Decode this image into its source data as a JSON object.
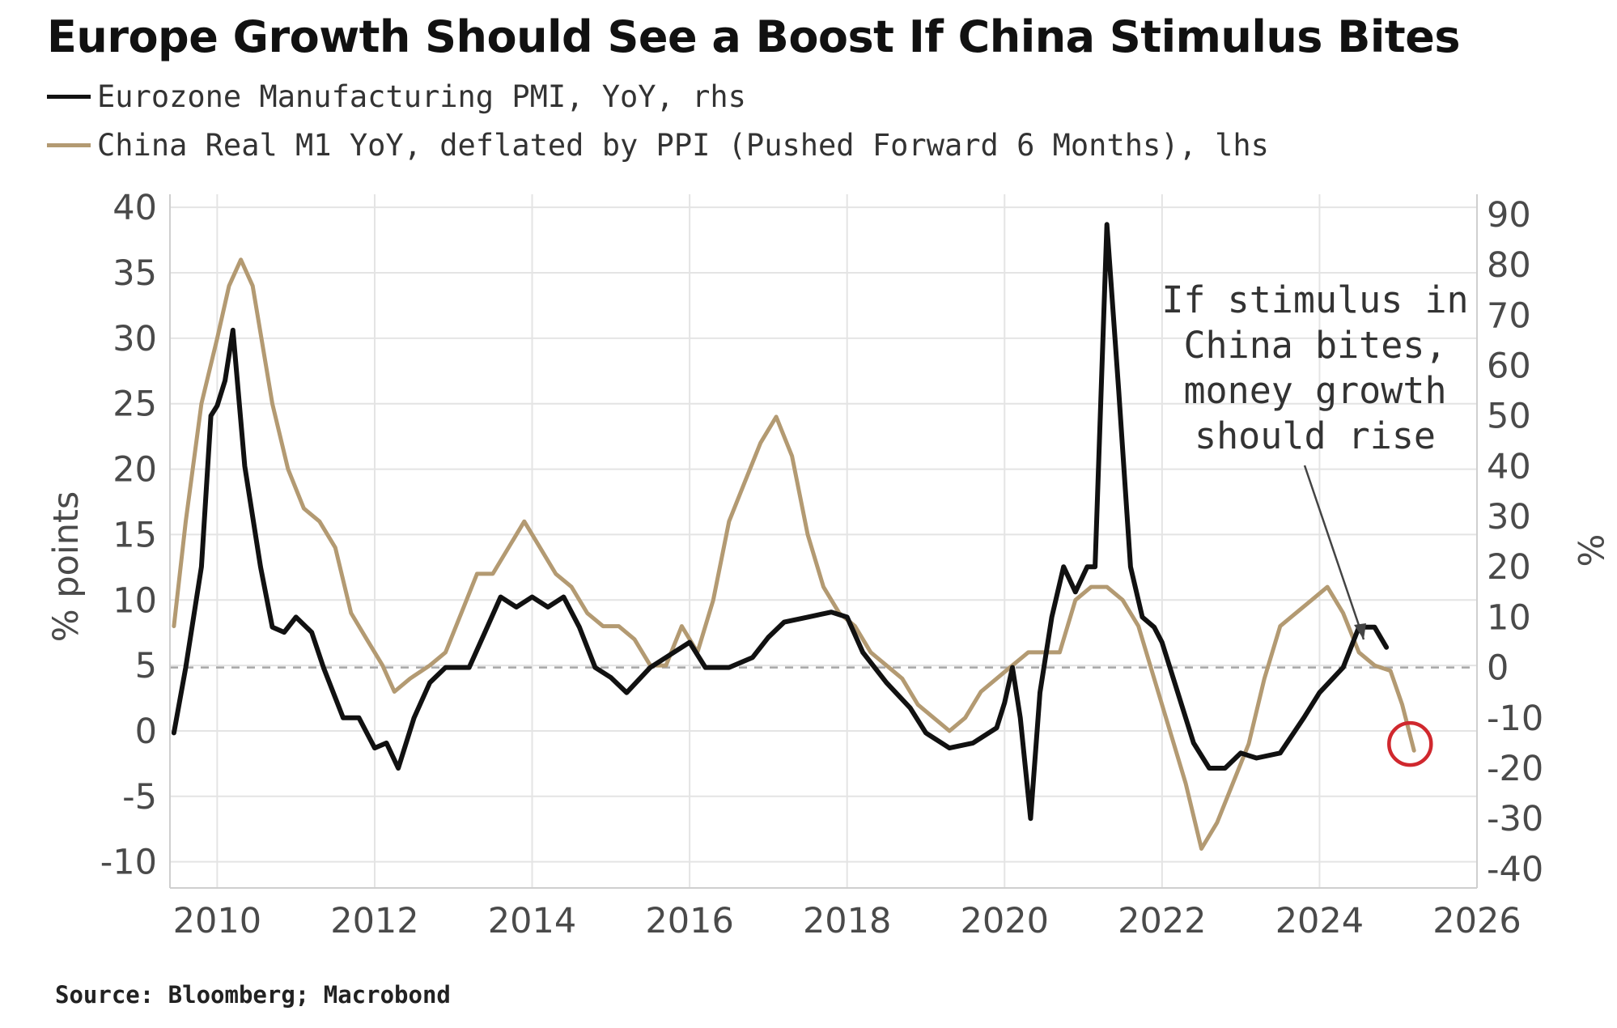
{
  "chart_data": {
    "type": "line",
    "title": "Europe Growth Should See a Boost If China Stimulus Bites",
    "source": "Source: Bloomberg; Macrobond",
    "left_axis": {
      "label": "% points",
      "ylim": [
        -12,
        41
      ],
      "ticks": [
        -10,
        -5,
        0,
        5,
        10,
        15,
        20,
        25,
        30,
        35,
        40
      ]
    },
    "right_axis": {
      "label": "%",
      "ylim": [
        -43.8,
        94
      ],
      "ticks": [
        -40,
        -30,
        -20,
        -10,
        0,
        10,
        20,
        30,
        40,
        50,
        60,
        70,
        80,
        90
      ]
    },
    "x_axis": {
      "xlim": [
        2009.4,
        2026.0
      ],
      "ticks": [
        "2010",
        "2012",
        "2014",
        "2016",
        "2018",
        "2020",
        "2022",
        "2024",
        "2026"
      ]
    },
    "zero_line": {
      "axis": "right",
      "value": 0,
      "style": "dashed"
    },
    "series": [
      {
        "name": "Eurozone Manufacturing PMI, YoY, rhs",
        "axis": "right",
        "color": "#111111",
        "points": [
          [
            2009.45,
            -13
          ],
          [
            2009.6,
            0
          ],
          [
            2009.8,
            20
          ],
          [
            2009.92,
            50
          ],
          [
            2010.0,
            52
          ],
          [
            2010.1,
            57
          ],
          [
            2010.2,
            67
          ],
          [
            2010.35,
            40
          ],
          [
            2010.55,
            20
          ],
          [
            2010.7,
            8
          ],
          [
            2010.85,
            7
          ],
          [
            2011.0,
            10
          ],
          [
            2011.2,
            7
          ],
          [
            2011.35,
            0
          ],
          [
            2011.6,
            -10
          ],
          [
            2011.8,
            -10
          ],
          [
            2012.0,
            -16
          ],
          [
            2012.15,
            -15
          ],
          [
            2012.3,
            -20
          ],
          [
            2012.5,
            -10
          ],
          [
            2012.7,
            -3
          ],
          [
            2012.9,
            0
          ],
          [
            2013.2,
            0
          ],
          [
            2013.4,
            7
          ],
          [
            2013.6,
            14
          ],
          [
            2013.8,
            12
          ],
          [
            2014.0,
            14
          ],
          [
            2014.2,
            12
          ],
          [
            2014.4,
            14
          ],
          [
            2014.6,
            8
          ],
          [
            2014.8,
            0
          ],
          [
            2015.0,
            -2
          ],
          [
            2015.2,
            -5
          ],
          [
            2015.5,
            0
          ],
          [
            2015.8,
            3
          ],
          [
            2016.0,
            5
          ],
          [
            2016.2,
            0
          ],
          [
            2016.5,
            0
          ],
          [
            2016.8,
            2
          ],
          [
            2017.0,
            6
          ],
          [
            2017.2,
            9
          ],
          [
            2017.5,
            10
          ],
          [
            2017.8,
            11
          ],
          [
            2018.0,
            10
          ],
          [
            2018.2,
            3
          ],
          [
            2018.5,
            -3
          ],
          [
            2018.8,
            -8
          ],
          [
            2019.0,
            -13
          ],
          [
            2019.3,
            -16
          ],
          [
            2019.6,
            -15
          ],
          [
            2019.9,
            -12
          ],
          [
            2020.0,
            -7
          ],
          [
            2020.1,
            0
          ],
          [
            2020.2,
            -10
          ],
          [
            2020.33,
            -30
          ],
          [
            2020.45,
            -5
          ],
          [
            2020.6,
            10
          ],
          [
            2020.75,
            20
          ],
          [
            2020.9,
            15
          ],
          [
            2021.05,
            20
          ],
          [
            2021.15,
            20
          ],
          [
            2021.3,
            88
          ],
          [
            2021.45,
            55
          ],
          [
            2021.6,
            20
          ],
          [
            2021.75,
            10
          ],
          [
            2021.9,
            8
          ],
          [
            2022.0,
            5
          ],
          [
            2022.2,
            -5
          ],
          [
            2022.4,
            -15
          ],
          [
            2022.6,
            -20
          ],
          [
            2022.8,
            -20
          ],
          [
            2023.0,
            -17
          ],
          [
            2023.2,
            -18
          ],
          [
            2023.5,
            -17
          ],
          [
            2023.8,
            -10
          ],
          [
            2024.0,
            -5
          ],
          [
            2024.3,
            0
          ],
          [
            2024.5,
            8
          ],
          [
            2024.7,
            8
          ],
          [
            2024.85,
            4
          ]
        ]
      },
      {
        "name": "China Real M1 YoY, deflated by PPI (Pushed Forward 6 Months), lhs",
        "axis": "left",
        "color": "#b39a72",
        "points": [
          [
            2009.45,
            8
          ],
          [
            2009.6,
            16
          ],
          [
            2009.8,
            25
          ],
          [
            2010.0,
            30
          ],
          [
            2010.15,
            34
          ],
          [
            2010.3,
            36
          ],
          [
            2010.45,
            34
          ],
          [
            2010.7,
            25
          ],
          [
            2010.9,
            20
          ],
          [
            2011.1,
            17
          ],
          [
            2011.3,
            16
          ],
          [
            2011.5,
            14
          ],
          [
            2011.7,
            9
          ],
          [
            2011.9,
            7
          ],
          [
            2012.1,
            5
          ],
          [
            2012.25,
            3
          ],
          [
            2012.45,
            4
          ],
          [
            2012.7,
            5
          ],
          [
            2012.9,
            6
          ],
          [
            2013.1,
            9
          ],
          [
            2013.3,
            12
          ],
          [
            2013.5,
            12
          ],
          [
            2013.7,
            14
          ],
          [
            2013.9,
            16
          ],
          [
            2014.1,
            14
          ],
          [
            2014.3,
            12
          ],
          [
            2014.5,
            11
          ],
          [
            2014.7,
            9
          ],
          [
            2014.9,
            8
          ],
          [
            2015.1,
            8
          ],
          [
            2015.3,
            7
          ],
          [
            2015.5,
            5
          ],
          [
            2015.7,
            5
          ],
          [
            2015.9,
            8
          ],
          [
            2016.1,
            6
          ],
          [
            2016.3,
            10
          ],
          [
            2016.5,
            16
          ],
          [
            2016.7,
            19
          ],
          [
            2016.9,
            22
          ],
          [
            2017.1,
            24
          ],
          [
            2017.3,
            21
          ],
          [
            2017.5,
            15
          ],
          [
            2017.7,
            11
          ],
          [
            2017.9,
            9
          ],
          [
            2018.1,
            8
          ],
          [
            2018.3,
            6
          ],
          [
            2018.5,
            5
          ],
          [
            2018.7,
            4
          ],
          [
            2018.9,
            2
          ],
          [
            2019.1,
            1
          ],
          [
            2019.3,
            0
          ],
          [
            2019.5,
            1
          ],
          [
            2019.7,
            3
          ],
          [
            2019.9,
            4
          ],
          [
            2020.1,
            5
          ],
          [
            2020.3,
            6
          ],
          [
            2020.5,
            6
          ],
          [
            2020.7,
            6
          ],
          [
            2020.9,
            10
          ],
          [
            2021.1,
            11
          ],
          [
            2021.3,
            11
          ],
          [
            2021.5,
            10
          ],
          [
            2021.7,
            8
          ],
          [
            2021.9,
            4
          ],
          [
            2022.1,
            0
          ],
          [
            2022.3,
            -4
          ],
          [
            2022.5,
            -9
          ],
          [
            2022.7,
            -7
          ],
          [
            2022.9,
            -4
          ],
          [
            2023.1,
            -1
          ],
          [
            2023.3,
            4
          ],
          [
            2023.5,
            8
          ],
          [
            2023.7,
            9
          ],
          [
            2023.9,
            10
          ],
          [
            2024.1,
            11
          ],
          [
            2024.3,
            9
          ],
          [
            2024.5,
            6
          ],
          [
            2024.7,
            5
          ],
          [
            2024.9,
            4.6
          ],
          [
            2025.05,
            2
          ],
          [
            2025.2,
            -1.5
          ]
        ]
      }
    ],
    "annotation": {
      "lines": [
        "If stimulus in",
        "China bites,",
        "money growth",
        "should rise"
      ],
      "highlight_point": {
        "x": 2025.15,
        "y": -1
      }
    }
  }
}
